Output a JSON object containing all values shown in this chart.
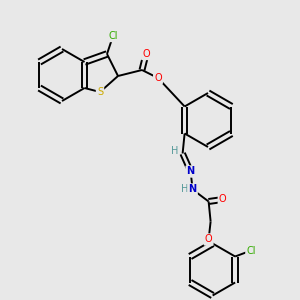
{
  "background_color": "#e8e8e8",
  "figsize": [
    3.0,
    3.0
  ],
  "dpi": 100,
  "colors": {
    "O": "#ff0000",
    "N": "#0000cc",
    "S": "#ccaa00",
    "Cl": "#33aa00",
    "C": "#000000",
    "H": "#559999"
  },
  "lw": 1.4,
  "font_size": 7.0
}
